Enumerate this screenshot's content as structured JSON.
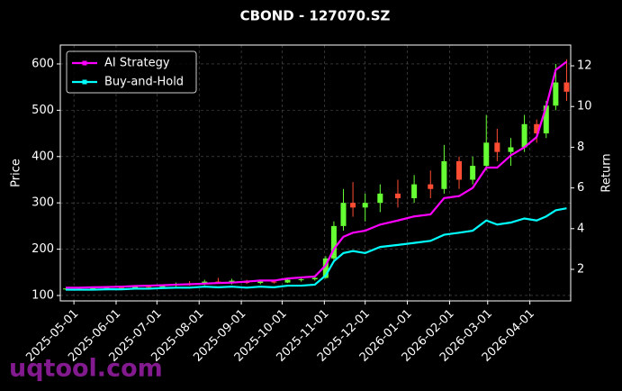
{
  "chart_data": {
    "type": "candlestick",
    "title": "CBOND - 127070.SZ",
    "ylabel": "Price",
    "y2label": "Return",
    "watermark": "uqtool.com",
    "x": [
      "2025-04-25",
      "2025-05-05",
      "2025-05-15",
      "2025-05-25",
      "2025-06-05",
      "2025-06-15",
      "2025-06-25",
      "2025-07-05",
      "2025-07-15",
      "2025-07-25",
      "2025-08-05",
      "2025-08-15",
      "2025-08-25",
      "2025-09-05",
      "2025-09-15",
      "2025-09-25",
      "2025-10-05",
      "2025-10-15",
      "2025-10-25",
      "2025-11-02",
      "2025-11-08",
      "2025-11-15",
      "2025-11-22",
      "2025-12-01",
      "2025-12-12",
      "2025-12-25",
      "2026-01-06",
      "2026-01-18",
      "2026-01-28",
      "2026-02-08",
      "2026-02-18",
      "2026-02-28",
      "2026-03-08",
      "2026-03-18",
      "2026-03-28",
      "2026-04-06",
      "2026-04-13",
      "2026-04-20",
      "2026-04-28"
    ],
    "open": [
      114,
      115,
      114,
      116,
      117,
      116,
      119,
      118,
      122,
      125,
      124,
      130,
      128,
      132,
      127,
      130,
      128,
      134,
      135,
      138,
      180,
      250,
      300,
      290,
      300,
      320,
      310,
      340,
      330,
      390,
      350,
      380,
      430,
      410,
      420,
      470,
      450,
      510,
      560
    ],
    "high": [
      116,
      117,
      117,
      118,
      119,
      120,
      121,
      124,
      128,
      131,
      134,
      138,
      136,
      134,
      133,
      134,
      136,
      140,
      142,
      185,
      260,
      330,
      345,
      320,
      340,
      350,
      360,
      370,
      425,
      400,
      400,
      490,
      460,
      440,
      490,
      480,
      520,
      600,
      610
    ],
    "low": [
      112,
      113,
      112,
      114,
      115,
      115,
      116,
      116,
      119,
      121,
      122,
      126,
      124,
      125,
      124,
      126,
      127,
      130,
      132,
      136,
      175,
      240,
      270,
      260,
      280,
      290,
      300,
      310,
      320,
      330,
      340,
      370,
      390,
      380,
      410,
      430,
      440,
      500,
      520
    ],
    "close": [
      115,
      114,
      116,
      117,
      116,
      119,
      118,
      122,
      125,
      124,
      130,
      128,
      132,
      127,
      130,
      128,
      134,
      135,
      138,
      180,
      250,
      300,
      290,
      300,
      320,
      310,
      340,
      330,
      390,
      350,
      380,
      430,
      410,
      420,
      470,
      450,
      510,
      560,
      540
    ],
    "up_color": "#66ff33",
    "down_color": "#ff4d33",
    "series": [
      {
        "name": "AI Strategy",
        "color": "#ff00ff",
        "axis": "y2",
        "values": [
          1.1,
          1.1,
          1.12,
          1.13,
          1.15,
          1.18,
          1.2,
          1.22,
          1.25,
          1.27,
          1.3,
          1.33,
          1.35,
          1.4,
          1.45,
          1.45,
          1.55,
          1.6,
          1.65,
          2.2,
          3.0,
          3.6,
          3.8,
          3.9,
          4.2,
          4.4,
          4.6,
          4.7,
          5.5,
          5.6,
          6.0,
          7.0,
          7.0,
          7.6,
          8.0,
          8.5,
          10.0,
          11.8,
          12.2
        ]
      },
      {
        "name": "Buy-and-Hold",
        "color": "#00ffff",
        "axis": "y2",
        "values": [
          1.0,
          1.0,
          1.0,
          1.02,
          1.02,
          1.05,
          1.05,
          1.08,
          1.1,
          1.1,
          1.15,
          1.12,
          1.15,
          1.1,
          1.15,
          1.12,
          1.2,
          1.2,
          1.25,
          1.7,
          2.4,
          2.8,
          2.9,
          2.8,
          3.1,
          3.2,
          3.3,
          3.4,
          3.7,
          3.8,
          3.9,
          4.4,
          4.2,
          4.3,
          4.5,
          4.4,
          4.6,
          4.9,
          5.0
        ]
      }
    ],
    "xlim": [
      "2025-04-21",
      "2026-05-01"
    ],
    "xticks": [
      "2025-05-01",
      "2025-06-01",
      "2025-07-01",
      "2025-08-01",
      "2025-09-01",
      "2025-10-01",
      "2025-11-01",
      "2025-12-01",
      "2026-01-01",
      "2026-02-01",
      "2026-03-01",
      "2026-04-01"
    ],
    "ylim": [
      88.3,
      640.8
    ],
    "yticks": [
      100,
      200,
      300,
      400,
      500,
      600
    ],
    "y2lim": [
      0.45,
      13.02
    ],
    "y2ticks": [
      2,
      4,
      6,
      8,
      10,
      12
    ],
    "grid": true,
    "legend": "upper left"
  }
}
